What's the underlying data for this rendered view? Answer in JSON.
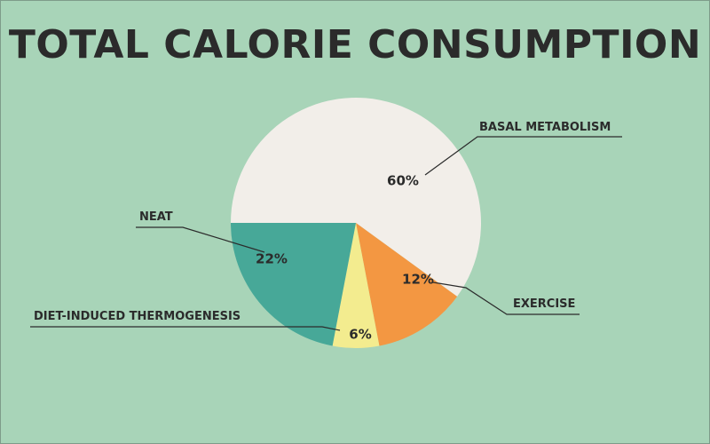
{
  "chart_data": {
    "type": "pie",
    "title": "TOTAL CALORIE CONSUMPTION",
    "slices": [
      {
        "label": "BASAL METABOLISM",
        "value": 60,
        "value_label": "60%",
        "color": "#f2eee9"
      },
      {
        "label": "EXERCISE",
        "value": 12,
        "value_label": "12%",
        "color": "#f39742"
      },
      {
        "label": "DIET-INDUCED THERMOGENESIS",
        "value": 6,
        "value_label": "6%",
        "color": "#f3ec8f"
      },
      {
        "label": "NEAT",
        "value": 22,
        "value_label": "22%",
        "color": "#47a898"
      }
    ],
    "legend": "callouts"
  },
  "colors": {
    "background": "#a8d4b8",
    "text": "#2b2b2b"
  }
}
